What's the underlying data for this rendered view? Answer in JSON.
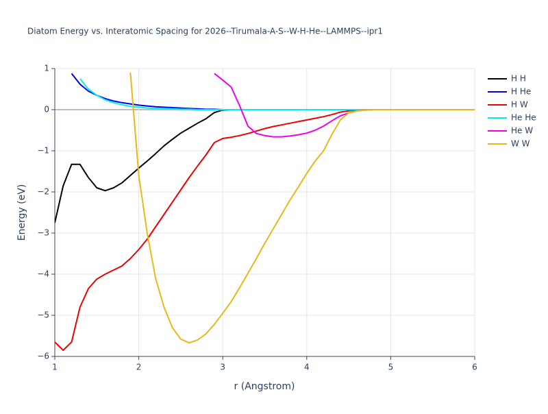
{
  "chart_data": {
    "type": "line",
    "title": "Diatom Energy vs. Interatomic Spacing for 2026--Tirumala-A-S--W-H-He--LAMMPS--ipr1",
    "x_label": "r (Angstrom)",
    "y_label": "Energy (eV)",
    "x": [
      1.0,
      1.1,
      1.2,
      1.3,
      1.4,
      1.5,
      1.6,
      1.7,
      1.8,
      1.9,
      2.0,
      2.1,
      2.2,
      2.3,
      2.4,
      2.5,
      2.6,
      2.7,
      2.8,
      2.9,
      3.0,
      3.1,
      3.2,
      3.3,
      3.4,
      3.5,
      3.6,
      3.7,
      3.8,
      3.9,
      4.0,
      4.1,
      4.2,
      4.3,
      4.4,
      4.5,
      4.6,
      4.7,
      4.8,
      4.9,
      5.0,
      5.5,
      6.0
    ],
    "series": [
      {
        "name": "H H",
        "color": "#000000",
        "values": [
          -2.75,
          -1.85,
          -1.33,
          -1.33,
          -1.65,
          -1.9,
          -1.97,
          -1.9,
          -1.78,
          -1.6,
          -1.42,
          -1.25,
          -1.07,
          -0.88,
          -0.72,
          -0.57,
          -0.45,
          -0.33,
          -0.22,
          -0.07,
          -0.01,
          0,
          0,
          0,
          0,
          0,
          0,
          0,
          0,
          0,
          0,
          0,
          0,
          0,
          0,
          0,
          0,
          0,
          0,
          0,
          0,
          0,
          0
        ]
      },
      {
        "name": "H He",
        "color": "#0000ee",
        "values": [
          null,
          null,
          0.88,
          0.62,
          0.45,
          0.35,
          0.27,
          0.21,
          0.17,
          0.14,
          0.11,
          0.09,
          0.07,
          0.06,
          0.05,
          0.04,
          0.03,
          0.02,
          0.01,
          0.01,
          0,
          0,
          0,
          0,
          0,
          0,
          0,
          0,
          0,
          0,
          0,
          0,
          0,
          0,
          0,
          0,
          0,
          0,
          0,
          0,
          0,
          0,
          0
        ]
      },
      {
        "name": "H W",
        "color": "#ee0000",
        "values": [
          -5.65,
          -5.85,
          -5.65,
          -4.8,
          -4.35,
          -4.12,
          -4.0,
          -3.9,
          -3.8,
          -3.62,
          -3.4,
          -3.15,
          -2.85,
          -2.55,
          -2.25,
          -1.95,
          -1.65,
          -1.37,
          -1.1,
          -0.8,
          -0.7,
          -0.67,
          -0.63,
          -0.58,
          -0.52,
          -0.46,
          -0.41,
          -0.37,
          -0.33,
          -0.29,
          -0.25,
          -0.21,
          -0.17,
          -0.12,
          -0.06,
          -0.03,
          -0.01,
          0,
          0,
          0,
          0,
          0,
          0
        ]
      },
      {
        "name": "He He",
        "color": "#00eeee",
        "values": [
          null,
          null,
          null,
          0.75,
          0.5,
          0.35,
          0.24,
          0.17,
          0.12,
          0.08,
          0.06,
          0.04,
          0.03,
          0.02,
          0.02,
          0.01,
          0.01,
          0,
          0,
          0,
          0,
          0,
          0,
          0,
          0,
          0,
          0,
          0,
          0,
          0,
          0,
          0,
          0,
          0,
          0,
          0,
          0,
          0,
          0,
          0,
          0,
          0,
          0
        ]
      },
      {
        "name": "He W",
        "color": "#ee00ee",
        "values": [
          null,
          null,
          null,
          null,
          null,
          null,
          null,
          null,
          null,
          null,
          null,
          null,
          null,
          null,
          null,
          null,
          null,
          null,
          null,
          0.88,
          0.72,
          0.55,
          0.1,
          -0.4,
          -0.58,
          -0.63,
          -0.66,
          -0.66,
          -0.64,
          -0.61,
          -0.57,
          -0.5,
          -0.4,
          -0.27,
          -0.15,
          -0.08,
          -0.03,
          -0.01,
          0,
          0,
          0,
          0,
          0
        ]
      },
      {
        "name": "W W",
        "color": "#e6b81a",
        "values": [
          null,
          null,
          null,
          null,
          null,
          null,
          null,
          null,
          null,
          0.9,
          -1.6,
          -3.0,
          -4.1,
          -4.8,
          -5.3,
          -5.58,
          -5.67,
          -5.6,
          -5.45,
          -5.22,
          -4.95,
          -4.67,
          -4.33,
          -3.98,
          -3.62,
          -3.25,
          -2.9,
          -2.55,
          -2.2,
          -1.88,
          -1.55,
          -1.25,
          -1.0,
          -0.6,
          -0.25,
          -0.08,
          -0.03,
          -0.01,
          0,
          0,
          0,
          0,
          0
        ]
      }
    ],
    "xlim": [
      1,
      6
    ],
    "xticks": [
      1,
      2,
      3,
      4,
      5,
      6
    ],
    "ylim": [
      -6,
      1
    ],
    "yticks": [
      {
        "value": -6,
        "label": "−6"
      },
      {
        "value": -5,
        "label": "−5"
      },
      {
        "value": -4,
        "label": "−4"
      },
      {
        "value": -3,
        "label": "−3"
      },
      {
        "value": -2,
        "label": "−2"
      },
      {
        "value": -1,
        "label": "−1"
      },
      0,
      1
    ],
    "grid": true
  }
}
